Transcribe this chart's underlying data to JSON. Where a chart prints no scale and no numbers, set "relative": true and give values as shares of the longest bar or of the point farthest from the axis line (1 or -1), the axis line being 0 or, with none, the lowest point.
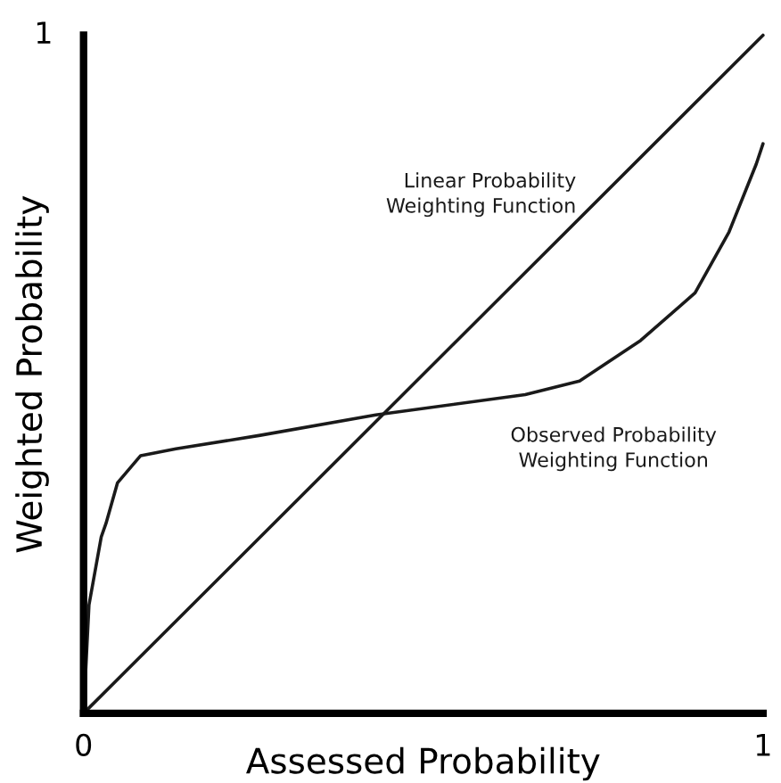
{
  "chart_data": {
    "type": "line",
    "xlabel": "Assessed Probability",
    "ylabel": "Weighted Probability",
    "xlim": [
      0,
      1
    ],
    "xticks": [
      0,
      1
    ],
    "relative": true,
    "annotations": [
      "1"
    ],
    "grid": false,
    "legend": false,
    "series": [
      {
        "name": "Linear Probability\nWeighting Function",
        "color": "#1a1a1a",
        "x": [
          0,
          1
        ],
        "values": [
          0,
          1
        ]
      },
      {
        "name": "Observed Probability\nWeighting Function",
        "color": "#1a1a1a",
        "x": [
          0,
          0.008,
          0.026,
          0.033,
          0.05,
          0.084,
          0.136,
          0.26,
          0.43,
          0.65,
          0.73,
          0.82,
          0.9,
          0.95,
          0.99,
          1.0
        ],
        "values": [
          0,
          0.16,
          0.26,
          0.28,
          0.34,
          0.38,
          0.39,
          0.41,
          0.44,
          0.47,
          0.49,
          0.55,
          0.62,
          0.71,
          0.81,
          0.84
        ]
      }
    ]
  }
}
